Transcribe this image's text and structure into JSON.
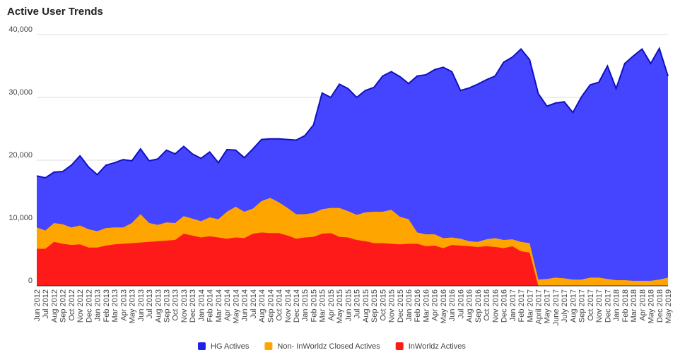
{
  "chart_data": {
    "type": "area",
    "title": "Active User Trends",
    "categories": [
      "Jun 2012",
      "Jul 2012",
      "Aug 2012",
      "Sep 2012",
      "Oct 2012",
      "Nov 2012",
      "Dec 2012",
      "Jan 2013",
      "Feb 2013",
      "Mar 2013",
      "Apr 2013",
      "May 2013",
      "Jun 2013",
      "Jul 2013",
      "Aug 2013",
      "Sep 2013",
      "Oct 2013",
      "Nov 2013",
      "Dec 2013",
      "Jan 2014",
      "Feb 2014",
      "Mar 2014",
      "Apr 2014",
      "May 2014",
      "Jun 2014",
      "Jul 2014",
      "Aug 2014",
      "Sep 2014",
      "Oct 2014",
      "Nov 2014",
      "Dec 2014",
      "Jan 2015",
      "Feb 2015",
      "Mar 2015",
      "Apr 2015",
      "May 2015",
      "Jun 2015",
      "Jul 2015",
      "Aug 2015",
      "Sep 2015",
      "Oct 2015",
      "Nov 2015",
      "Dec 2015",
      "Jan 2016",
      "Feb 2016",
      "Mar 2016",
      "Apr 2016",
      "May 2016",
      "Jun 2016",
      "Jul 2016",
      "Aug 2016",
      "Sep 2016",
      "Oct 2016",
      "Nov 2016",
      "Dec 2016",
      "Jan 2017",
      "Feb 2017",
      "Mar 2017",
      "April 2017",
      "May 2017",
      "June 2017",
      "July 2017",
      "Aug 2017",
      "Sep 2017",
      "Oct 2017",
      "Nov 2017",
      "Dec 2017",
      "Jan 2018",
      "Feb 2018",
      "Mar 2018",
      "Apr 2018",
      "May 2018",
      "Dec 2018",
      "May 2019"
    ],
    "series": [
      {
        "name": "HG Actives",
        "color": "#4545ff",
        "line_color": "#1010c0",
        "values": [
          17500,
          17200,
          18100,
          18200,
          19200,
          20700,
          18900,
          17700,
          19200,
          19600,
          20100,
          19900,
          21800,
          19900,
          20200,
          21600,
          21000,
          22200,
          21000,
          20300,
          21300,
          19600,
          21700,
          21600,
          20400,
          21800,
          23300,
          23400,
          23400,
          23300,
          23200,
          23900,
          25600,
          30700,
          30000,
          32100,
          31400,
          30000,
          31100,
          31600,
          33400,
          34100,
          33300,
          32200,
          33400,
          33600,
          34400,
          34800,
          34100,
          31100,
          31500,
          32100,
          32800,
          33400,
          35600,
          36400,
          37700,
          36000,
          30600,
          28600,
          29100,
          29300,
          27600,
          30100,
          32000,
          32400,
          35000,
          31400,
          35400,
          36600,
          37700,
          35400,
          37800,
          33400
        ]
      },
      {
        "name": "Non- InWorldz Closed Actives",
        "color": "#ffa500",
        "values": [
          9300,
          8800,
          10000,
          9800,
          9300,
          9600,
          9000,
          8700,
          9200,
          9300,
          9300,
          10000,
          11400,
          10000,
          9700,
          10100,
          10000,
          11100,
          10700,
          10300,
          10900,
          10600,
          11800,
          12600,
          11800,
          12300,
          13500,
          14000,
          13300,
          12400,
          11400,
          11400,
          11600,
          12200,
          12400,
          12400,
          11900,
          11300,
          11700,
          11800,
          11800,
          12100,
          11000,
          10600,
          8500,
          8200,
          8200,
          7600,
          7700,
          7500,
          7100,
          7000,
          7400,
          7600,
          7300,
          7400,
          7000,
          6800,
          1000,
          1100,
          1300,
          1200,
          1000,
          1000,
          1300,
          1300,
          1100,
          900,
          900,
          800,
          800,
          800,
          1000,
          1300
        ]
      },
      {
        "name": "InWorldz Actives",
        "color": "#ff1a1a",
        "values": [
          5900,
          5900,
          7000,
          6700,
          6500,
          6600,
          6100,
          6100,
          6400,
          6600,
          6700,
          6800,
          6900,
          7000,
          7100,
          7200,
          7300,
          8300,
          8000,
          7700,
          7900,
          7700,
          7500,
          7700,
          7600,
          8300,
          8500,
          8400,
          8400,
          8000,
          7500,
          7700,
          7800,
          8300,
          8400,
          7800,
          7700,
          7300,
          7100,
          6800,
          6800,
          6700,
          6600,
          6700,
          6700,
          6300,
          6400,
          6000,
          6500,
          6400,
          6300,
          6200,
          6300,
          6200,
          6000,
          6300,
          5500,
          5300,
          0,
          0,
          0,
          0,
          0,
          0,
          0,
          0,
          0,
          0,
          0,
          0,
          0,
          0,
          0,
          0
        ]
      }
    ],
    "ylim": [
      0,
      40000
    ],
    "yticks": [
      0,
      {
        "value": 10000,
        "label": "10,000"
      },
      {
        "value": 20000,
        "label": "20,000"
      },
      {
        "value": 30000,
        "label": "30,000"
      },
      {
        "value": 40000,
        "label": "40,000"
      }
    ],
    "grid": true,
    "legend": "bottom"
  }
}
